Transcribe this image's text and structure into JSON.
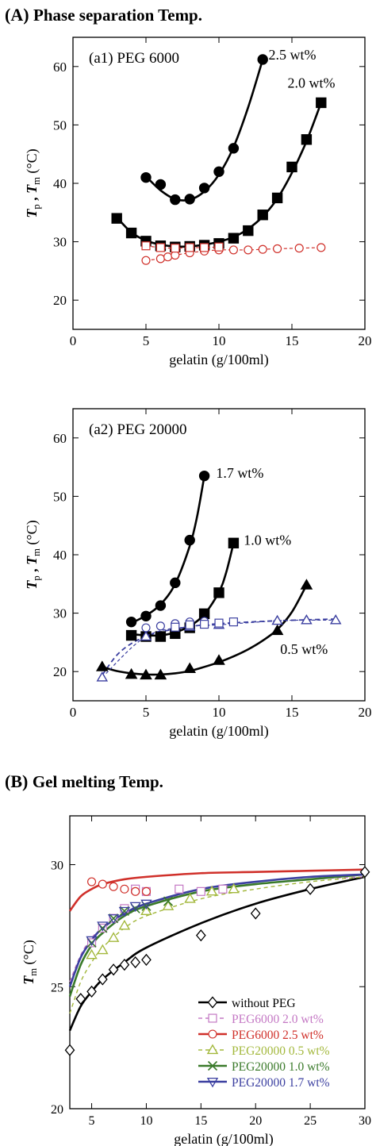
{
  "sections": {
    "A": {
      "label": "(A)",
      "title": "Phase separation Temp."
    },
    "B": {
      "label": "(B)",
      "title": "Gel melting Temp."
    }
  },
  "chart_data": [
    {
      "panel": "a1",
      "type": "line",
      "annotation": "(a1) PEG 6000",
      "xlabel": "gelatin (g/100ml)",
      "ylabel_main": "T",
      "ylabel_sub1": "p",
      "ylabel_mid": " , ",
      "ylabel_main2": "T",
      "ylabel_sub2": "m",
      "ylabel_unit": " (°C)",
      "xlim": [
        0,
        20
      ],
      "ylim": [
        15,
        65
      ],
      "xticks": [
        0,
        5,
        10,
        15,
        20
      ],
      "yticks": [
        20,
        30,
        40,
        50,
        60
      ],
      "grid": false,
      "series": [
        {
          "label": "2.5 wt%",
          "marker": "circle-filled",
          "color": "#000000",
          "x": [
            5,
            6,
            7,
            8,
            9,
            10,
            11,
            13
          ],
          "y": [
            41,
            39.8,
            37.2,
            37.3,
            39.2,
            42,
            46,
            61.2
          ],
          "fit_x": [
            5,
            6,
            7,
            8,
            9,
            10,
            11,
            12,
            13
          ],
          "fit_y": [
            41.2,
            38.8,
            37.3,
            37.2,
            38.6,
            41.5,
            46.2,
            53.0,
            61.2
          ]
        },
        {
          "label": "2.0 wt%",
          "marker": "square-filled",
          "color": "#000000",
          "x": [
            3,
            4,
            5,
            6,
            7,
            8,
            9,
            10,
            11,
            12,
            13,
            14,
            15,
            16,
            17
          ],
          "y": [
            34,
            31.5,
            30.1,
            29.3,
            29.1,
            29.2,
            29.4,
            29.7,
            30.6,
            31.9,
            34.6,
            37.5,
            42.8,
            47.5,
            53.8
          ],
          "fit_x": [
            3,
            4,
            5,
            6,
            7,
            8,
            9,
            10,
            11,
            12,
            13,
            14,
            15,
            16,
            17
          ],
          "fit_y": [
            34.2,
            31.6,
            30.2,
            29.5,
            29.2,
            29.2,
            29.5,
            30.0,
            30.8,
            32.2,
            34.3,
            37.4,
            41.8,
            47.2,
            53.8
          ]
        },
        {
          "label": "",
          "marker": "circle-open",
          "color": "#d0302a",
          "dashed": true,
          "x": [
            5,
            6,
            6.5,
            7,
            8,
            9,
            10,
            11,
            12,
            13,
            14,
            15.5,
            17
          ],
          "y": [
            26.8,
            27.1,
            27.4,
            27.7,
            28.1,
            28.4,
            28.6,
            28.6,
            28.6,
            28.7,
            28.8,
            28.9,
            29
          ]
        },
        {
          "label": "",
          "marker": "square-open",
          "color": "#d0302a",
          "dashed": true,
          "x": [
            5,
            6,
            7,
            8,
            9,
            10
          ],
          "y": [
            29.3,
            29,
            28.9,
            29,
            29,
            29.1
          ]
        }
      ]
    },
    {
      "panel": "a2",
      "type": "line",
      "annotation": "(a2) PEG 20000",
      "xlabel": "gelatin (g/100ml)",
      "ylabel_main": "T",
      "ylabel_sub1": "p",
      "ylabel_mid": " , ",
      "ylabel_main2": "T",
      "ylabel_sub2": "m",
      "ylabel_unit": " (°C)",
      "xlim": [
        0,
        20
      ],
      "ylim": [
        15,
        65
      ],
      "xticks": [
        0,
        5,
        10,
        15,
        20
      ],
      "yticks": [
        20,
        30,
        40,
        50,
        60
      ],
      "grid": false,
      "series": [
        {
          "label": "1.7 wt%",
          "marker": "circle-filled",
          "color": "#000000",
          "x": [
            4,
            5,
            6,
            7,
            8,
            9
          ],
          "y": [
            28.5,
            29.5,
            31.3,
            35.2,
            42.5,
            53.5
          ],
          "fit_x": [
            4,
            5,
            6,
            7,
            8,
            8.5,
            9
          ],
          "fit_y": [
            28.3,
            29.6,
            31.5,
            35.0,
            41.5,
            46.5,
            53.5
          ]
        },
        {
          "label": "1.0 wt%",
          "marker": "square-filled",
          "color": "#000000",
          "x": [
            4,
            5,
            6,
            7,
            8,
            9,
            10,
            11
          ],
          "y": [
            26.2,
            26,
            26,
            26.5,
            27.5,
            29.9,
            33.5,
            42
          ],
          "fit_x": [
            4,
            5,
            6,
            7,
            8,
            9,
            10,
            10.5,
            11
          ],
          "fit_y": [
            26.4,
            26.2,
            26.2,
            26.7,
            27.8,
            29.8,
            33.6,
            37.0,
            42.0
          ]
        },
        {
          "label": "0.5 wt%",
          "marker": "triangle-filled",
          "color": "#000000",
          "x": [
            2,
            4,
            5,
            6,
            8,
            10,
            14,
            16
          ],
          "y": [
            20.8,
            19.5,
            19.4,
            19.4,
            20.5,
            21.9,
            27,
            34.8
          ],
          "fit_x": [
            2,
            3,
            4,
            5,
            6,
            7,
            8,
            9,
            10,
            11,
            12,
            13,
            14,
            15,
            16
          ],
          "fit_y": [
            20.8,
            20.1,
            19.7,
            19.5,
            19.5,
            19.7,
            20.1,
            20.8,
            21.6,
            22.6,
            23.8,
            25.3,
            27.2,
            30.2,
            34.8
          ]
        },
        {
          "label": "",
          "marker": "triangle-open",
          "color": "#3b3fa0",
          "dashed": true,
          "x": [
            2,
            5,
            8,
            10,
            14,
            16,
            18
          ],
          "y": [
            19,
            26,
            27.7,
            28,
            28.7,
            28.8,
            28.8
          ]
        },
        {
          "label": "",
          "marker": "circle-open",
          "color": "#3b3fa0",
          "x": [
            5,
            6,
            7,
            8,
            9
          ],
          "y": [
            27.5,
            27.8,
            28.2,
            28.5,
            28.6
          ]
        },
        {
          "label": "",
          "marker": "square-open",
          "color": "#3b3fa0",
          "x": [
            7,
            8,
            9,
            10,
            11
          ],
          "y": [
            27.6,
            28,
            28.1,
            28.3,
            28.5
          ]
        }
      ],
      "dashed_fit": {
        "x": [
          2,
          3,
          4,
          5,
          6,
          8,
          10,
          14,
          18
        ],
        "y": [
          19.4,
          22.8,
          24.8,
          26.0,
          26.8,
          27.7,
          28.2,
          28.7,
          29.0
        ]
      }
    },
    {
      "panel": "B",
      "type": "line",
      "xlabel": "gelatin (g/100ml)",
      "ylabel_main": "T",
      "ylabel_sub1": "m",
      "ylabel_unit": " (°C)",
      "xlim": [
        3,
        30
      ],
      "ylim": [
        20,
        32
      ],
      "xticks": [
        5,
        10,
        15,
        20,
        25,
        30
      ],
      "yticks": [
        20,
        25,
        30
      ],
      "grid": false,
      "legend_position": "bottom-right",
      "series": [
        {
          "name": "without PEG",
          "marker": "diamond-open",
          "color": "#000000",
          "line": "solid",
          "x": [
            3,
            4,
            5,
            6,
            7,
            8,
            9,
            10,
            15,
            20,
            25,
            30
          ],
          "y": [
            22.4,
            24.5,
            24.8,
            25.3,
            25.7,
            25.9,
            26,
            26.1,
            27.1,
            28,
            29,
            29.7
          ],
          "fit_x": [
            3,
            4,
            5,
            6,
            8,
            10,
            15,
            20,
            25,
            30
          ],
          "fit_y": [
            23.2,
            24.2,
            24.8,
            25.3,
            26.0,
            26.6,
            27.6,
            28.4,
            29.0,
            29.5
          ]
        },
        {
          "name": "PEG6000 2.0 wt%",
          "marker": "square-open",
          "color": "#c478c4",
          "line": "dashed",
          "x": [
            5,
            6,
            7,
            8,
            9,
            10,
            13,
            15,
            17
          ],
          "y": [
            26.8,
            27.4,
            27.8,
            28.2,
            29,
            28.9,
            29,
            28.9,
            29
          ],
          "fit_x": [
            3,
            4,
            5,
            6,
            8,
            10,
            15,
            20,
            25,
            30
          ],
          "fit_y": [
            25.2,
            26.3,
            27.0,
            27.4,
            28.0,
            28.4,
            28.9,
            29.2,
            29.4,
            29.5
          ]
        },
        {
          "name": "PEG6000 2.5 wt%",
          "marker": "circle-open",
          "color": "#d0302a",
          "line": "solid",
          "x": [
            5,
            6,
            7,
            8,
            9,
            10
          ],
          "y": [
            29.3,
            29.2,
            29.1,
            29,
            28.9,
            28.9
          ],
          "fit_x": [
            3,
            4,
            5,
            6,
            8,
            10,
            15,
            20,
            25,
            30
          ],
          "fit_y": [
            28.1,
            28.7,
            29.0,
            29.2,
            29.4,
            29.5,
            29.65,
            29.7,
            29.75,
            29.8
          ]
        },
        {
          "name": "PEG20000 0.5 wt%",
          "marker": "triangle-open",
          "color": "#a3b83c",
          "line": "dashed",
          "x": [
            5,
            6,
            7,
            8,
            10,
            12,
            14,
            16,
            18
          ],
          "y": [
            26.3,
            26.5,
            27,
            27.5,
            28.1,
            28.3,
            28.6,
            28.9,
            29
          ],
          "fit_x": [
            3,
            4,
            5,
            6,
            8,
            10,
            15,
            20,
            25,
            30
          ],
          "fit_y": [
            23.9,
            25.2,
            26.0,
            26.6,
            27.4,
            27.9,
            28.6,
            29.0,
            29.3,
            29.5
          ]
        },
        {
          "name": "PEG20000 1.0 wt%",
          "marker": "x",
          "color": "#3a7a2a",
          "line": "solid",
          "x": [
            5,
            6,
            7,
            8,
            9,
            10,
            12
          ],
          "y": [
            26.8,
            27.4,
            27.8,
            28.1,
            28.2,
            28.3,
            28.5
          ],
          "fit_x": [
            3,
            4,
            5,
            6,
            8,
            10,
            15,
            20,
            25,
            30
          ],
          "fit_y": [
            24.6,
            25.9,
            26.7,
            27.2,
            27.9,
            28.3,
            28.9,
            29.2,
            29.4,
            29.6
          ]
        },
        {
          "name": "PEG20000 1.7 wt%",
          "marker": "triangle-down-open",
          "color": "#3b3fa0",
          "line": "solid",
          "x": [
            5,
            6,
            7,
            8,
            9,
            10
          ],
          "y": [
            26.9,
            27.5,
            27.8,
            28.1,
            28.3,
            28.4
          ],
          "fit_x": [
            3,
            4,
            5,
            6,
            8,
            10,
            15,
            20,
            25,
            30
          ],
          "fit_y": [
            25.0,
            26.2,
            26.9,
            27.4,
            28.0,
            28.4,
            29.0,
            29.3,
            29.5,
            29.6
          ]
        }
      ]
    }
  ]
}
